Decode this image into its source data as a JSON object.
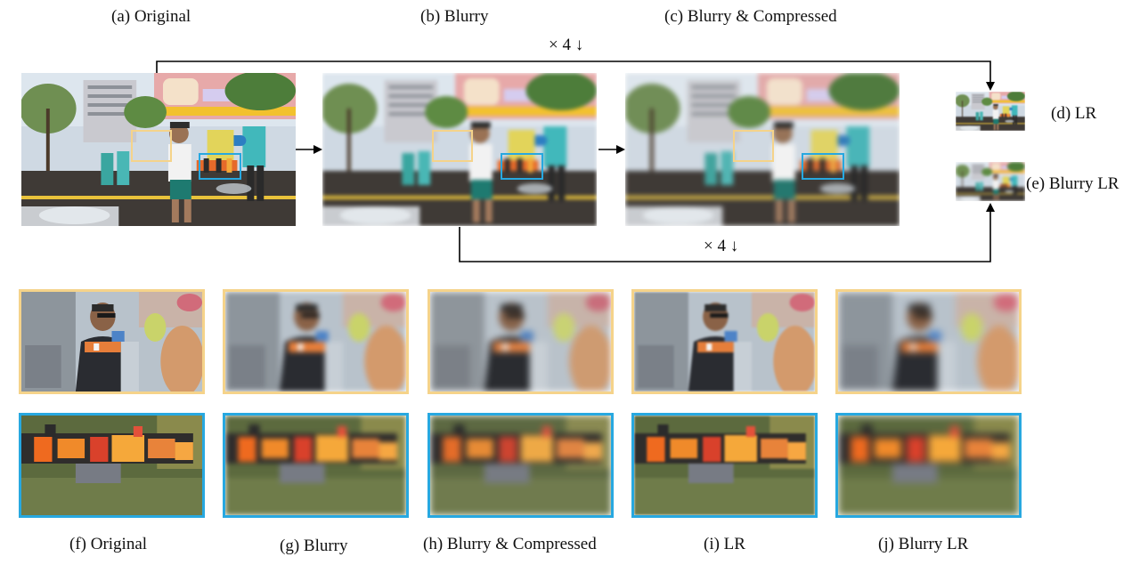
{
  "labels": {
    "a": "(a) Original",
    "b": "(b) Blurry",
    "c": "(c) Blurry & Compressed",
    "d": "(d) LR",
    "e": "(e) Blurry LR",
    "f": "(f) Original",
    "g": "(g) Blurry",
    "h": "(h) Blurry & Compressed",
    "i": "(i) LR",
    "j": "(j) Blurry LR"
  },
  "arrows": {
    "top_scale": "× 4 ↓",
    "bottom_scale": "× 4 ↓"
  },
  "colors": {
    "yellow_box": "#f5d38a",
    "blue_box": "#27a8e0"
  }
}
